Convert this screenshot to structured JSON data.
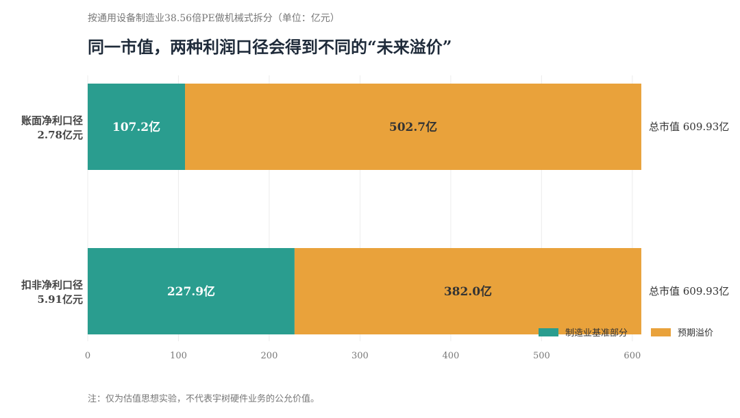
{
  "chart_data": {
    "type": "bar",
    "orientation": "horizontal",
    "stacked": true,
    "subtitle": "按通用设备制造业38.56倍PE做机械式拆分（单位：亿元）",
    "title": "同一市值，两种利润口径会得到不同的“未来溢价”",
    "categories": [
      {
        "name": "账面净利口径",
        "sub": "2.78亿元"
      },
      {
        "name": "扣非净利口径",
        "sub": "5.91亿元"
      }
    ],
    "series": [
      {
        "name": "制造业基准部分",
        "color": "#2a9d8f",
        "label_color": "#ffffff",
        "values": [
          107.2,
          227.9
        ],
        "labels": [
          "107.2亿",
          "227.9亿"
        ]
      },
      {
        "name": "预期溢价",
        "color": "#e9a23b",
        "label_color": "#333333",
        "values": [
          502.7,
          382.0
        ],
        "labels": [
          "502.7亿",
          "382.0亿"
        ]
      }
    ],
    "totals": [
      "总市值 609.93亿",
      "总市值 609.93亿"
    ],
    "xlim": [
      0,
      609.93
    ],
    "xticks": [
      0,
      100,
      200,
      300,
      400,
      500,
      600
    ],
    "grid": true,
    "legend_position": "bottom-right",
    "note": "注：仅为估值思想实验，不代表宇树硬件业务的公允价值。"
  }
}
